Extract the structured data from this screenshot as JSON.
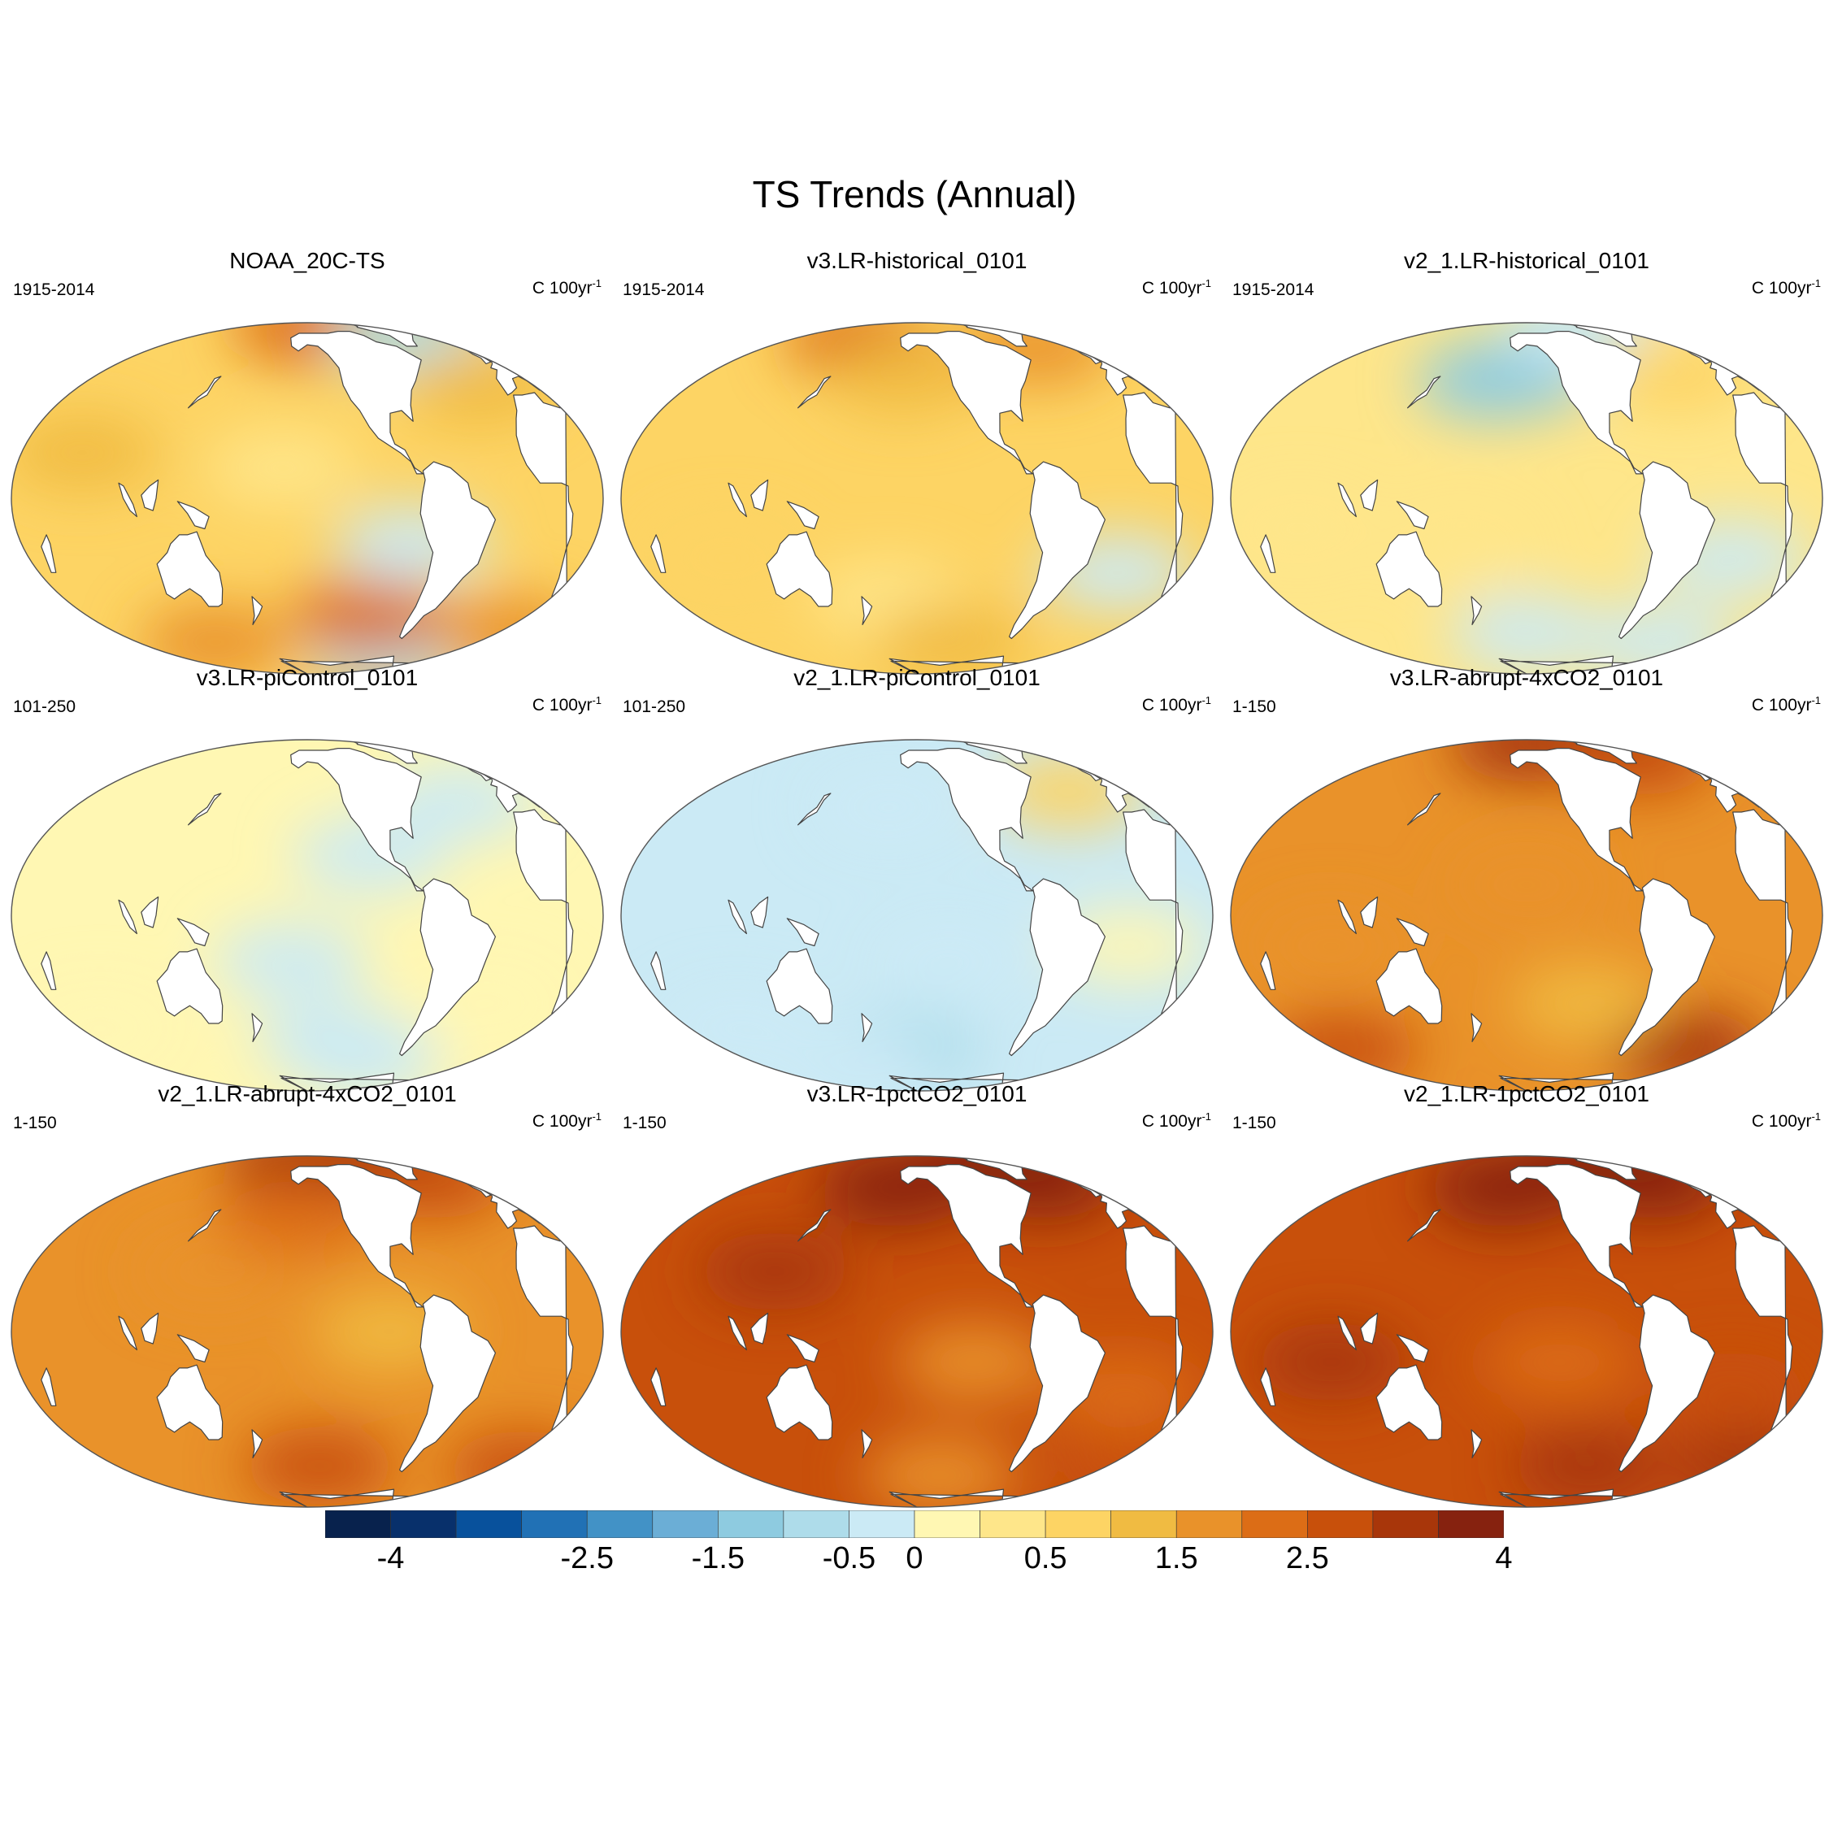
{
  "figure": {
    "title": "TS Trends (Annual)"
  },
  "panels": [
    {
      "title": "NOAA_20C-TS",
      "period": "1915-2014",
      "units": "C 100yr",
      "units_exp": "-1",
      "mean_trend": 0.9,
      "blobs": [
        [
          -150,
          80,
          2.1
        ],
        [
          -35,
          68,
          -0.8
        ],
        [
          -70,
          -62,
          -0.9
        ],
        [
          -105,
          -42,
          2.1
        ],
        [
          15,
          -50,
          1.8
        ],
        [
          -25,
          40,
          1.3
        ],
        [
          -165,
          10,
          0.3
        ],
        [
          -85,
          -15,
          -0.4
        ],
        [
          70,
          15,
          1.1
        ],
        [
          130,
          -55,
          1.5
        ]
      ]
    },
    {
      "title": "v3.LR-historical_0101",
      "period": "1915-2014",
      "units": "C 100yr",
      "units_exp": "-1",
      "mean_trend": 0.8,
      "blobs": [
        [
          -35,
          60,
          1.8
        ],
        [
          150,
          65,
          2.0
        ],
        [
          -160,
          45,
          1.3
        ],
        [
          -20,
          -25,
          -0.3
        ],
        [
          -170,
          -35,
          0.3
        ],
        [
          -120,
          -55,
          1.2
        ],
        [
          90,
          -20,
          0.8
        ]
      ]
    },
    {
      "title": "v2_1.LR-historical_0101",
      "period": "1915-2014",
      "units": "C 100yr",
      "units_exp": "-1",
      "mean_trend": 0.25,
      "blobs": [
        [
          -175,
          42,
          -1.2
        ],
        [
          -155,
          45,
          -1.5
        ],
        [
          -60,
          78,
          -0.4
        ],
        [
          -35,
          45,
          0.8
        ],
        [
          -150,
          -50,
          -0.3
        ],
        [
          -35,
          -55,
          -0.4
        ],
        [
          70,
          -10,
          0.4
        ],
        [
          170,
          -15,
          0.3
        ],
        [
          -20,
          -20,
          -0.4
        ]
      ]
    },
    {
      "title": "v3.LR-piControl_0101",
      "period": "101-250",
      "units": "C 100yr",
      "units_exp": "-1",
      "mean_trend": 0.05,
      "blobs": [
        [
          -160,
          -15,
          -0.3
        ],
        [
          -130,
          -45,
          -0.3
        ],
        [
          -110,
          20,
          -0.2
        ],
        [
          -40,
          40,
          -0.2
        ],
        [
          -30,
          -30,
          0.1
        ],
        [
          -100,
          -55,
          -0.3
        ],
        [
          60,
          -40,
          0.1
        ]
      ]
    },
    {
      "title": "v2_1.LR-piControl_0101",
      "period": "101-250",
      "units": "C 100yr",
      "units_exp": "-1",
      "mean_trend": -0.05,
      "blobs": [
        [
          -160,
          -50,
          -0.7
        ],
        [
          -35,
          45,
          0.6
        ],
        [
          -170,
          38,
          -0.5
        ],
        [
          80,
          -40,
          -0.3
        ],
        [
          -130,
          -15,
          -0.2
        ],
        [
          150,
          -60,
          -0.3
        ],
        [
          -20,
          -10,
          0.1
        ]
      ]
    },
    {
      "title": "v3.LR-abrupt-4xCO2_0101",
      "period": "1-150",
      "units": "C 100yr",
      "units_exp": "-1",
      "mean_trend": 1.7,
      "blobs": [
        [
          0,
          80,
          3.5
        ],
        [
          -150,
          80,
          3.2
        ],
        [
          -30,
          65,
          2.8
        ],
        [
          60,
          -50,
          2.7
        ],
        [
          -20,
          -50,
          3.1
        ],
        [
          -110,
          -30,
          1.4
        ],
        [
          -150,
          10,
          1.5
        ],
        [
          90,
          -10,
          1.8
        ]
      ]
    },
    {
      "title": "v2_1.LR-abrupt-4xCO2_0101",
      "period": "1-150",
      "units": "C 100yr",
      "units_exp": "-1",
      "mean_trend": 1.8,
      "blobs": [
        [
          0,
          80,
          3.6
        ],
        [
          -160,
          75,
          3.3
        ],
        [
          -30,
          60,
          2.6
        ],
        [
          -140,
          -50,
          2.9
        ],
        [
          30,
          -52,
          2.8
        ],
        [
          -100,
          0,
          1.4
        ],
        [
          150,
          20,
          1.7
        ],
        [
          -160,
          40,
          2.2
        ]
      ]
    },
    {
      "title": "v3.LR-1pctCO2_0101",
      "period": "1-150",
      "units": "C 100yr",
      "units_exp": "-1",
      "mean_trend": 2.6,
      "blobs": [
        [
          0,
          80,
          4.2
        ],
        [
          -170,
          55,
          3.8
        ],
        [
          -30,
          60,
          3.6
        ],
        [
          -115,
          -10,
          1.6
        ],
        [
          -130,
          -55,
          1.7
        ],
        [
          30,
          -50,
          2.8
        ],
        [
          -20,
          -20,
          2.3
        ],
        [
          120,
          20,
          3.0
        ]
      ]
    },
    {
      "title": "v2_1.LR-1pctCO2_0101",
      "period": "1-150",
      "units": "C 100yr",
      "units_exp": "-1",
      "mean_trend": 2.9,
      "blobs": [
        [
          0,
          80,
          4.3
        ],
        [
          -170,
          55,
          4.1
        ],
        [
          -30,
          60,
          3.6
        ],
        [
          -130,
          -10,
          2.4
        ],
        [
          -100,
          -50,
          3.2
        ],
        [
          30,
          -50,
          3.4
        ],
        [
          90,
          -10,
          3.0
        ],
        [
          -20,
          -20,
          2.5
        ]
      ]
    }
  ],
  "colorbar": {
    "levels": [
      -4.5,
      -4,
      -3.5,
      -3,
      -2.5,
      -2,
      -1.5,
      -1,
      -0.5,
      0,
      0.25,
      0.5,
      1,
      1.5,
      2,
      2.5,
      3,
      3.5,
      4
    ],
    "colors": [
      "#08224d",
      "#08306b",
      "#08519c",
      "#2171b5",
      "#4292c6",
      "#6baed6",
      "#8ecbe0",
      "#aedcea",
      "#cbeaf5",
      "#fff7b3",
      "#fee68a",
      "#fdd464",
      "#f0bb42",
      "#e9922a",
      "#dc6d16",
      "#c8500b",
      "#a8360a",
      "#86220f"
    ],
    "tick_values": [
      -4,
      -2.5,
      -1.5,
      -0.5,
      0,
      0.5,
      1.5,
      2.5,
      4
    ],
    "tick_labels": [
      "-4",
      "-2.5",
      "-1.5",
      "-0.5",
      "0",
      "0.5",
      "1.5",
      "2.5",
      "4"
    ]
  }
}
